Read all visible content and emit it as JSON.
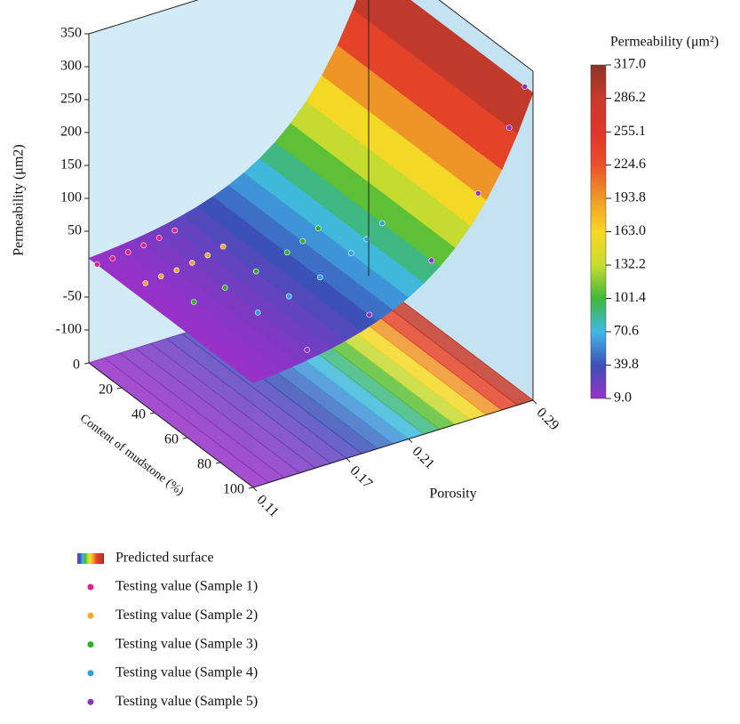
{
  "chart_data": {
    "type": "surface3d",
    "zlabel": "Permeability (μm2)",
    "xlabel": "Porosity",
    "ylabel": "Content of mudstone (%)",
    "xlim": [
      0.11,
      0.29
    ],
    "xticks": [
      0.11,
      0.17,
      0.21,
      0.29
    ],
    "ylim": [
      0,
      100
    ],
    "yticks": [
      0,
      20,
      40,
      60,
      80,
      100
    ],
    "zlim": [
      -150,
      350
    ],
    "zticks": [
      -100,
      -50,
      50,
      100,
      150,
      200,
      250,
      300,
      350
    ],
    "surface": {
      "name": "Predicted surface",
      "x": [
        0.11,
        0.12,
        0.13,
        0.14,
        0.15,
        0.16,
        0.17,
        0.18,
        0.19,
        0.2,
        0.21,
        0.22,
        0.23,
        0.24,
        0.25,
        0.26,
        0.27,
        0.28,
        0.29
      ],
      "z": [
        9,
        11,
        13.4,
        16.3,
        19.9,
        24.3,
        29.6,
        36.1,
        44,
        53.7,
        65.5,
        79.8,
        97.3,
        118.7,
        144.7,
        176.5,
        215.2,
        262.4,
        317
      ]
    },
    "series": [
      {
        "name": "Testing value (Sample 1)",
        "color": "#e0208a",
        "x": [
          0.11,
          0.12,
          0.13,
          0.14,
          0.15,
          0.16
        ],
        "y": [
          5,
          5,
          5,
          5,
          5,
          5
        ],
        "z": [
          9,
          11,
          13,
          16,
          20,
          24
        ]
      },
      {
        "name": "Testing value (Sample 2)",
        "color": "#f0a830",
        "x": [
          0.12,
          0.13,
          0.14,
          0.15,
          0.16,
          0.17
        ],
        "y": [
          25,
          25,
          25,
          25,
          25,
          25
        ],
        "z": [
          11,
          14,
          16,
          20,
          24,
          30
        ]
      },
      {
        "name": "Testing value (Sample 3)",
        "color": "#30b020",
        "x": [
          0.13,
          0.15,
          0.17,
          0.19,
          0.2,
          0.21
        ],
        "y": [
          45,
          45,
          45,
          45,
          45,
          45
        ],
        "z": [
          13,
          20,
          30,
          44,
          54,
          66
        ]
      },
      {
        "name": "Testing value (Sample 4)",
        "color": "#30a0e0",
        "x": [
          0.15,
          0.17,
          0.19,
          0.21,
          0.22,
          0.23
        ],
        "y": [
          65,
          65,
          65,
          65,
          65,
          65
        ],
        "z": [
          20,
          30,
          44,
          66,
          80,
          97
        ]
      },
      {
        "name": "Testing value (Sample 5)",
        "color": "#9030c0",
        "x": [
          0.15,
          0.19,
          0.23,
          0.26,
          0.28,
          0.29
        ],
        "y": [
          95,
          95,
          95,
          95,
          95,
          95
        ],
        "z": [
          20,
          44,
          97,
          177,
          262,
          317
        ]
      }
    ],
    "colorbar": {
      "title": "Permeability (μm²)",
      "ticks": [
        {
          "value": 317,
          "label": "317.0"
        },
        {
          "value": 286.2,
          "label": "286.2"
        },
        {
          "value": 255.1,
          "label": "255.1"
        },
        {
          "value": 224.6,
          "label": "224.6"
        },
        {
          "value": 193.8,
          "label": "193.8"
        },
        {
          "value": 163,
          "label": "163.0"
        },
        {
          "value": 132.2,
          "label": "132.2"
        },
        {
          "value": 101.4,
          "label": "101.4"
        },
        {
          "value": 70.6,
          "label": "70.6"
        },
        {
          "value": 39.8,
          "label": "39.8"
        },
        {
          "value": 9,
          "label": "9.0"
        }
      ],
      "colors": [
        "#8a3426",
        "#c83a2a",
        "#e0352a",
        "#e8502a",
        "#f09a28",
        "#f8d825",
        "#c8dc30",
        "#40b838",
        "#40b8e8",
        "#3c50b8",
        "#9a30c8"
      ]
    }
  }
}
